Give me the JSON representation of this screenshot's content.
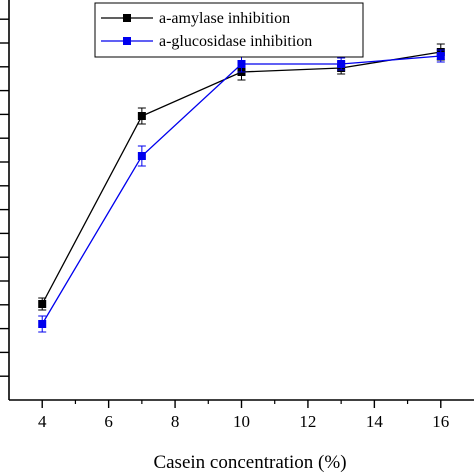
{
  "chart_data": {
    "type": "line",
    "title": "",
    "xlabel": "Casein concentration (%)",
    "ylabel": "",
    "x": [
      4,
      7,
      10,
      13,
      16
    ],
    "xlim": [
      3,
      17
    ],
    "xticks": [
      4,
      6,
      8,
      10,
      12,
      14,
      16
    ],
    "ylim": [
      0,
      100
    ],
    "grid": false,
    "legend_position": "top-center",
    "series": [
      {
        "name": "a-amylase inhibition",
        "color": "#000000",
        "marker": "square",
        "values": [
          24,
          71,
          82,
          83,
          87
        ],
        "errors": [
          1.5,
          2,
          2,
          1.5,
          2
        ]
      },
      {
        "name": "a-glucosidase inhibition",
        "color": "#0000ee",
        "marker": "square",
        "values": [
          19,
          61,
          84,
          84,
          86
        ],
        "errors": [
          2,
          2.5,
          2,
          1.5,
          1.5
        ]
      }
    ]
  }
}
